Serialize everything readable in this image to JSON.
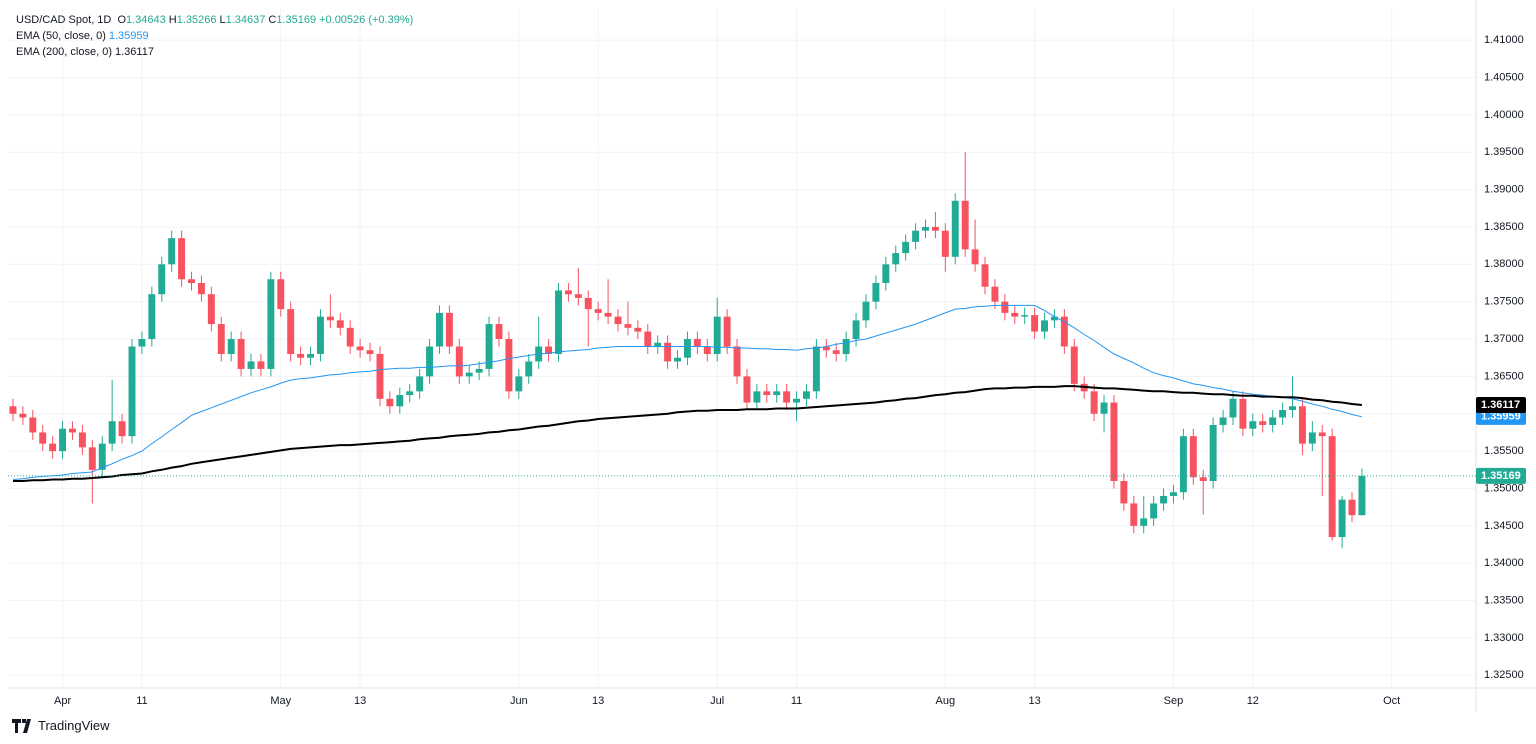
{
  "chart_data": {
    "type": "candlestick",
    "title": "USD/CAD Spot, 1D",
    "ohlc_labels": [
      "O",
      "H",
      "L",
      "C"
    ],
    "change": "+0.00526 (+0.39%)",
    "up_color": "#22ab94",
    "down_color": "#f7525f",
    "grid": true,
    "categories": [
      null,
      null,
      null,
      null,
      null,
      "Apr",
      null,
      null,
      null,
      null,
      null,
      null,
      null,
      "11",
      null,
      null,
      null,
      null,
      null,
      null,
      null,
      null,
      null,
      null,
      null,
      null,
      null,
      "May",
      null,
      null,
      null,
      null,
      null,
      null,
      null,
      "13",
      null,
      null,
      null,
      null,
      null,
      null,
      null,
      null,
      null,
      null,
      null,
      null,
      null,
      null,
      null,
      "Jun",
      null,
      null,
      null,
      null,
      null,
      null,
      null,
      "13",
      null,
      null,
      null,
      null,
      null,
      null,
      null,
      null,
      null,
      null,
      null,
      "Jul",
      null,
      null,
      null,
      null,
      null,
      null,
      null,
      "11",
      null,
      null,
      null,
      null,
      null,
      null,
      null,
      null,
      null,
      null,
      null,
      null,
      null,
      null,
      "Aug",
      null,
      null,
      null,
      null,
      null,
      null,
      null,
      null,
      "13",
      null,
      null,
      null,
      null,
      null,
      null,
      null,
      null,
      null,
      null,
      null,
      null,
      null,
      "Sep",
      null,
      null,
      null,
      null,
      null,
      null,
      null,
      "12",
      null,
      null,
      null,
      null,
      null,
      null,
      null,
      null,
      null,
      null,
      null,
      null,
      null,
      "Oct",
      null,
      null,
      null,
      null,
      null,
      null,
      null,
      null
    ],
    "open": [
      1.361,
      1.36,
      1.3595,
      1.3575,
      1.356,
      1.355,
      1.358,
      1.3575,
      1.3555,
      1.3525,
      1.356,
      1.359,
      1.357,
      1.369,
      1.37,
      1.376,
      1.38,
      1.3835,
      1.378,
      1.3775,
      1.376,
      1.372,
      1.368,
      1.37,
      1.366,
      1.367,
      1.366,
      1.378,
      1.374,
      1.368,
      1.3675,
      1.368,
      1.373,
      1.3725,
      1.3715,
      1.369,
      1.3685,
      1.368,
      1.362,
      1.361,
      1.3625,
      1.363,
      1.365,
      1.369,
      1.3735,
      1.369,
      1.365,
      1.3655,
      1.366,
      1.372,
      1.37,
      1.363,
      1.365,
      1.367,
      1.369,
      1.368,
      1.3765,
      1.376,
      1.3755,
      1.374,
      1.3735,
      1.373,
      1.372,
      1.3715,
      1.371,
      1.369,
      1.3695,
      1.367,
      1.3675,
      1.37,
      1.369,
      1.368,
      1.373,
      1.369,
      1.365,
      1.3615,
      1.363,
      1.3625,
      1.363,
      1.3615,
      1.362,
      1.363,
      1.369,
      1.3685,
      1.368,
      1.37,
      1.3725,
      1.375,
      1.3775,
      1.38,
      1.3815,
      1.383,
      1.3845,
      1.385,
      1.3845,
      1.381,
      1.3885,
      1.382,
      1.38,
      1.377,
      1.375,
      1.3735,
      1.373,
      1.3732,
      1.371,
      1.3725,
      1.373,
      1.369,
      1.364,
      1.363,
      1.36,
      1.3615,
      1.351,
      1.348,
      1.345,
      1.346,
      1.348,
      1.349,
      1.3495,
      1.357,
      1.3515,
      1.351,
      1.3585,
      1.3595,
      1.362,
      1.358,
      1.359,
      1.3585,
      1.3595,
      1.3605,
      1.361,
      1.356,
      1.3575,
      1.357,
      1.3435,
      1.3485,
      1.34643,
      null,
      null,
      null,
      null,
      null,
      null,
      null,
      null,
      null,
      null,
      null
    ],
    "high": [
      1.362,
      1.361,
      1.3605,
      1.3585,
      1.357,
      1.359,
      1.359,
      1.3585,
      1.3565,
      1.357,
      1.3645,
      1.36,
      1.37,
      1.371,
      1.377,
      1.381,
      1.3845,
      1.3845,
      1.379,
      1.3785,
      1.377,
      1.373,
      1.371,
      1.371,
      1.368,
      1.368,
      1.379,
      1.379,
      1.375,
      1.369,
      1.369,
      1.374,
      1.376,
      1.3735,
      1.3725,
      1.37,
      1.3695,
      1.369,
      1.363,
      1.3635,
      1.364,
      1.366,
      1.37,
      1.3745,
      1.3745,
      1.37,
      1.3665,
      1.367,
      1.373,
      1.373,
      1.371,
      1.366,
      1.368,
      1.373,
      1.37,
      1.3775,
      1.3775,
      1.3795,
      1.3765,
      1.375,
      1.378,
      1.374,
      1.375,
      1.3725,
      1.372,
      1.3705,
      1.3705,
      1.3685,
      1.371,
      1.371,
      1.37,
      1.3755,
      1.374,
      1.37,
      1.366,
      1.364,
      1.364,
      1.364,
      1.364,
      1.363,
      1.364,
      1.37,
      1.37,
      1.3695,
      1.371,
      1.3735,
      1.376,
      1.3785,
      1.381,
      1.3825,
      1.384,
      1.3855,
      1.386,
      1.387,
      1.3855,
      1.3895,
      1.395,
      1.386,
      1.381,
      1.378,
      1.376,
      1.3745,
      1.3742,
      1.3742,
      1.3735,
      1.374,
      1.374,
      1.37,
      1.365,
      1.364,
      1.3625,
      1.3625,
      1.352,
      1.349,
      1.349,
      1.349,
      1.35,
      1.3505,
      1.358,
      1.358,
      1.3525,
      1.3595,
      1.3605,
      1.363,
      1.363,
      1.36,
      1.36,
      1.3605,
      1.3615,
      1.365,
      1.362,
      1.359,
      1.3585,
      1.358,
      1.349,
      1.3495,
      1.35266,
      null,
      null,
      null,
      null,
      null,
      null,
      null,
      null,
      null,
      null,
      null
    ],
    "low": [
      1.359,
      1.3585,
      1.3565,
      1.355,
      1.354,
      1.354,
      1.3565,
      1.3545,
      1.348,
      1.3515,
      1.355,
      1.356,
      1.356,
      1.368,
      1.369,
      1.375,
      1.379,
      1.377,
      1.3765,
      1.375,
      1.371,
      1.367,
      1.367,
      1.365,
      1.365,
      1.365,
      1.365,
      1.373,
      1.367,
      1.3665,
      1.3665,
      1.367,
      1.3715,
      1.3705,
      1.368,
      1.3675,
      1.367,
      1.361,
      1.36,
      1.36,
      1.3615,
      1.362,
      1.364,
      1.368,
      1.368,
      1.364,
      1.364,
      1.3645,
      1.365,
      1.369,
      1.362,
      1.362,
      1.364,
      1.366,
      1.367,
      1.367,
      1.375,
      1.3745,
      1.369,
      1.3725,
      1.372,
      1.371,
      1.3705,
      1.37,
      1.368,
      1.368,
      1.366,
      1.366,
      1.3665,
      1.368,
      1.367,
      1.367,
      1.368,
      1.364,
      1.3605,
      1.3605,
      1.3615,
      1.3615,
      1.3605,
      1.359,
      1.361,
      1.362,
      1.3675,
      1.367,
      1.367,
      1.369,
      1.3715,
      1.374,
      1.3765,
      1.379,
      1.3805,
      1.382,
      1.3835,
      1.3835,
      1.379,
      1.38,
      1.381,
      1.379,
      1.376,
      1.374,
      1.3725,
      1.372,
      1.372,
      1.37,
      1.37,
      1.3715,
      1.368,
      1.363,
      1.362,
      1.359,
      1.3575,
      1.35,
      1.347,
      1.344,
      1.344,
      1.345,
      1.347,
      1.348,
      1.3485,
      1.3505,
      1.3465,
      1.35,
      1.3575,
      1.3585,
      1.357,
      1.357,
      1.3575,
      1.3575,
      1.3585,
      1.3595,
      1.3545,
      1.355,
      1.349,
      1.343,
      1.342,
      1.3455,
      1.34637,
      null,
      null,
      null,
      null,
      null,
      null,
      null,
      null,
      null,
      null,
      null
    ],
    "close": [
      1.36,
      1.3595,
      1.3575,
      1.356,
      1.355,
      1.358,
      1.3575,
      1.3555,
      1.3525,
      1.356,
      1.359,
      1.357,
      1.369,
      1.37,
      1.376,
      1.38,
      1.3835,
      1.378,
      1.3775,
      1.376,
      1.372,
      1.368,
      1.37,
      1.366,
      1.367,
      1.366,
      1.378,
      1.374,
      1.368,
      1.3675,
      1.368,
      1.373,
      1.3725,
      1.3715,
      1.369,
      1.3685,
      1.368,
      1.362,
      1.361,
      1.3625,
      1.363,
      1.365,
      1.369,
      1.3735,
      1.369,
      1.365,
      1.3655,
      1.366,
      1.372,
      1.37,
      1.363,
      1.365,
      1.367,
      1.369,
      1.368,
      1.3765,
      1.376,
      1.3755,
      1.374,
      1.3735,
      1.373,
      1.372,
      1.3715,
      1.371,
      1.369,
      1.3695,
      1.367,
      1.3675,
      1.37,
      1.369,
      1.368,
      1.373,
      1.369,
      1.365,
      1.3615,
      1.363,
      1.3625,
      1.363,
      1.3615,
      1.362,
      1.363,
      1.369,
      1.3685,
      1.368,
      1.37,
      1.3725,
      1.375,
      1.3775,
      1.38,
      1.3815,
      1.383,
      1.3845,
      1.385,
      1.3845,
      1.381,
      1.3885,
      1.382,
      1.38,
      1.377,
      1.375,
      1.3735,
      1.373,
      1.3732,
      1.371,
      1.3725,
      1.373,
      1.369,
      1.364,
      1.363,
      1.36,
      1.3615,
      1.351,
      1.348,
      1.345,
      1.346,
      1.348,
      1.349,
      1.3495,
      1.357,
      1.3515,
      1.351,
      1.3585,
      1.3595,
      1.362,
      1.358,
      1.359,
      1.3585,
      1.3595,
      1.3605,
      1.361,
      1.356,
      1.3575,
      1.357,
      1.3435,
      1.3485,
      1.34643,
      1.35169,
      null,
      null,
      null,
      null,
      null,
      null,
      null,
      null,
      null,
      null,
      null
    ],
    "series": [
      {
        "name": "EMA (50, close, 0)",
        "color": "#2196f3",
        "width": 1,
        "values": [
          1.3512,
          1.3513,
          1.3515,
          1.3516,
          1.3517,
          1.3518,
          1.352,
          1.3521,
          1.3522,
          1.3528,
          1.3533,
          1.3539,
          1.3544,
          1.355,
          1.356,
          1.3569,
          1.3579,
          1.3588,
          1.3598,
          1.3603,
          1.3608,
          1.3613,
          1.3618,
          1.3623,
          1.3628,
          1.3632,
          1.3636,
          1.3641,
          1.3645,
          1.3647,
          1.3648,
          1.365,
          1.3652,
          1.3653,
          1.3655,
          1.3656,
          1.3657,
          1.3659,
          1.366,
          1.3661,
          1.3661,
          1.3662,
          1.3662,
          1.3663,
          1.3664,
          1.3664,
          1.3665,
          1.3667,
          1.3669,
          1.3671,
          1.3674,
          1.3676,
          1.3678,
          1.368,
          1.3681,
          1.3683,
          1.3684,
          1.3685,
          1.3686,
          1.3688,
          1.3689,
          1.369,
          1.369,
          1.369,
          1.369,
          1.369,
          1.369,
          1.369,
          1.369,
          1.369,
          1.369,
          1.3689,
          1.3689,
          1.3688,
          1.3688,
          1.3687,
          1.3687,
          1.3686,
          1.3686,
          1.3685,
          1.3687,
          1.3688,
          1.369,
          1.3693,
          1.3695,
          1.3698,
          1.37,
          1.3704,
          1.3708,
          1.3712,
          1.3716,
          1.372,
          1.3725,
          1.373,
          1.3735,
          1.374,
          1.3741,
          1.3743,
          1.3744,
          1.3745,
          1.3745,
          1.3745,
          1.3745,
          1.3745,
          1.3738,
          1.373,
          1.3723,
          1.3715,
          1.3706,
          1.3698,
          1.3689,
          1.368,
          1.3674,
          1.3668,
          1.3661,
          1.3655,
          1.3651,
          1.3648,
          1.3644,
          1.364,
          1.3638,
          1.3635,
          1.3633,
          1.363,
          1.3628,
          1.3626,
          1.3625,
          1.3623,
          1.3622,
          1.362,
          1.3617,
          1.3613,
          1.361,
          1.3606,
          1.3603,
          1.3599,
          1.35959,
          null,
          null,
          null,
          null,
          null,
          null,
          null,
          null,
          null,
          null,
          null
        ]
      },
      {
        "name": "EMA (200, close, 0)",
        "color": "#000000",
        "width": 2,
        "values": [
          1.351,
          1.351,
          1.3511,
          1.3511,
          1.3512,
          1.3512,
          1.3513,
          1.3513,
          1.3514,
          1.3515,
          1.3516,
          1.3518,
          1.3519,
          1.352,
          1.3523,
          1.3525,
          1.3528,
          1.353,
          1.3533,
          1.3535,
          1.3537,
          1.3539,
          1.3541,
          1.3543,
          1.3545,
          1.3547,
          1.3549,
          1.3551,
          1.3553,
          1.3554,
          1.3555,
          1.3556,
          1.3557,
          1.3558,
          1.3558,
          1.3559,
          1.356,
          1.3561,
          1.3562,
          1.3563,
          1.3564,
          1.3566,
          1.3567,
          1.3568,
          1.357,
          1.3571,
          1.3572,
          1.3573,
          1.3575,
          1.3576,
          1.3578,
          1.3579,
          1.3581,
          1.3583,
          1.3584,
          1.3586,
          1.3588,
          1.359,
          1.3591,
          1.3593,
          1.3594,
          1.3595,
          1.3596,
          1.3597,
          1.3598,
          1.3599,
          1.36,
          1.3602,
          1.3603,
          1.3604,
          1.3604,
          1.3605,
          1.3605,
          1.3605,
          1.3606,
          1.3606,
          1.3606,
          1.3607,
          1.3607,
          1.3607,
          1.3608,
          1.3609,
          1.361,
          1.3611,
          1.3612,
          1.3613,
          1.3614,
          1.3615,
          1.3617,
          1.3618,
          1.362,
          1.3621,
          1.3623,
          1.3625,
          1.3626,
          1.3628,
          1.3629,
          1.3631,
          1.3633,
          1.3634,
          1.3634,
          1.3635,
          1.3635,
          1.3636,
          1.3636,
          1.3636,
          1.3637,
          1.3637,
          1.3636,
          1.3635,
          1.3634,
          1.3634,
          1.3633,
          1.3632,
          1.3631,
          1.363,
          1.363,
          1.3629,
          1.3628,
          1.3628,
          1.3627,
          1.3626,
          1.3626,
          1.3625,
          1.3624,
          1.3624,
          1.3623,
          1.3623,
          1.3622,
          1.3622,
          1.3621,
          1.3619,
          1.3618,
          1.3616,
          1.3615,
          1.3613,
          1.36117,
          null,
          null,
          null,
          null,
          null,
          null,
          null,
          null,
          null,
          null,
          null
        ]
      }
    ],
    "ylim": [
      1.3233,
      1.4143
    ],
    "yticks": [
      {
        "value": 1.325,
        "label": "1.32500"
      },
      {
        "value": 1.33,
        "label": "1.33000"
      },
      {
        "value": 1.335,
        "label": "1.33500"
      },
      {
        "value": 1.34,
        "label": "1.34000"
      },
      {
        "value": 1.345,
        "label": "1.34500"
      },
      {
        "value": 1.35,
        "label": "1.35000"
      },
      {
        "value": 1.355,
        "label": "1.35500"
      },
      {
        "value": 1.36,
        "label": "1.36000"
      },
      {
        "value": 1.365,
        "label": "1.36500"
      },
      {
        "value": 1.37,
        "label": "1.37000"
      },
      {
        "value": 1.375,
        "label": "1.37500"
      },
      {
        "value": 1.38,
        "label": "1.38000"
      },
      {
        "value": 1.385,
        "label": "1.38500"
      },
      {
        "value": 1.39,
        "label": "1.39000"
      },
      {
        "value": 1.395,
        "label": "1.39500"
      },
      {
        "value": 1.4,
        "label": "1.40000"
      },
      {
        "value": 1.405,
        "label": "1.40500"
      },
      {
        "value": 1.41,
        "label": "1.41000"
      }
    ]
  },
  "branding": "TradingView"
}
